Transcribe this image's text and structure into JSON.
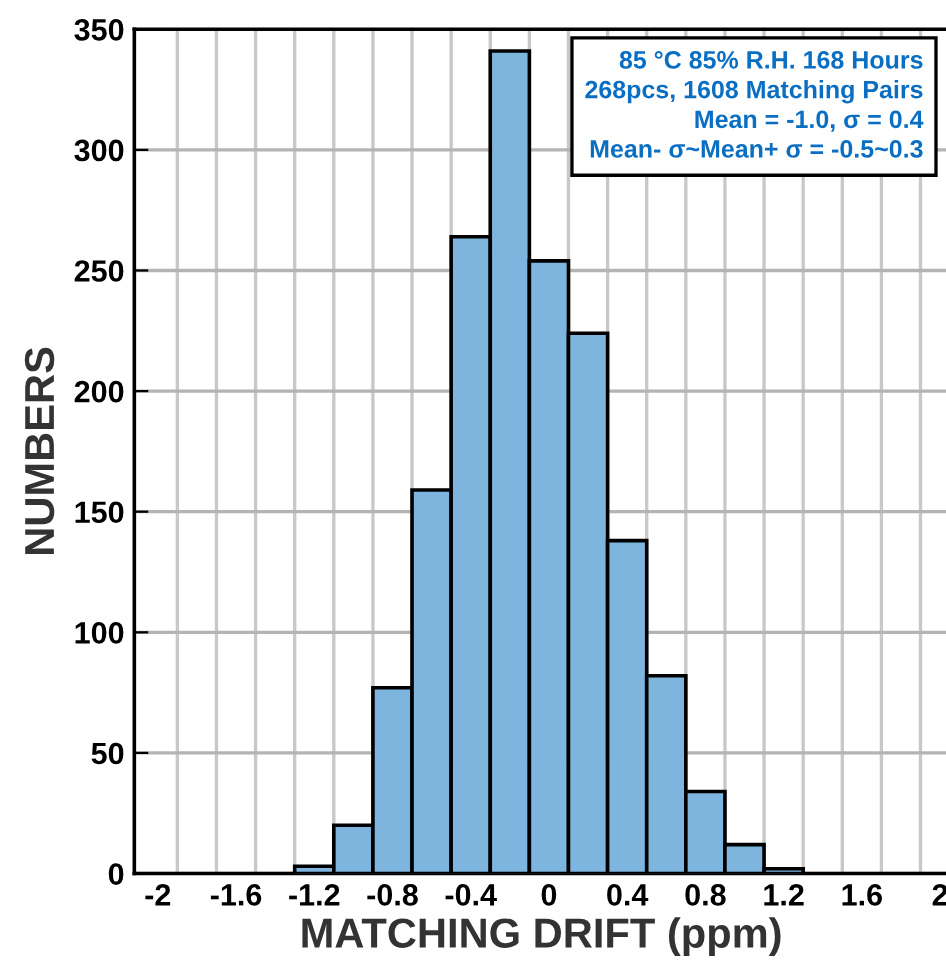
{
  "chart_data": {
    "type": "histogram",
    "xlabel": "MATCHING DRIFT (ppm)",
    "ylabel": "NUMBERS",
    "bins": [
      -1.3,
      -1.1,
      -0.9,
      -0.7,
      -0.5,
      -0.3,
      -0.1,
      0.1,
      0.3,
      0.5,
      0.7,
      0.9,
      1.1,
      1.3
    ],
    "values": [
      3,
      20,
      77,
      159,
      264,
      341,
      254,
      224,
      138,
      82,
      34,
      12,
      2
    ],
    "color": "#7db5de",
    "xlim": [
      -2.12,
      2.04
    ],
    "xticks": [
      -2,
      -1.6,
      -1.2,
      -0.8,
      -0.4,
      0,
      0.4,
      0.8,
      1.2,
      1.6,
      2,
      {
        "value": -1.9,
        "label": null
      },
      {
        "value": -1.7,
        "label": null
      },
      {
        "value": -1.5,
        "label": null
      },
      {
        "value": -1.3,
        "label": null
      },
      {
        "value": -1.1,
        "label": null
      },
      {
        "value": -0.9,
        "label": null
      },
      {
        "value": -0.7,
        "label": null
      },
      {
        "value": -0.5,
        "label": null
      },
      {
        "value": -0.3,
        "label": null
      },
      {
        "value": -0.1,
        "label": null
      },
      {
        "value": 0.1,
        "label": null
      },
      {
        "value": 0.3,
        "label": null
      },
      {
        "value": 0.5,
        "label": null
      },
      {
        "value": 0.7,
        "label": null
      },
      {
        "value": 0.9,
        "label": null
      },
      {
        "value": 1.1,
        "label": null
      },
      {
        "value": 1.3,
        "label": null
      },
      {
        "value": 1.5,
        "label": null
      },
      {
        "value": 1.7,
        "label": null
      },
      {
        "value": 1.9,
        "label": null
      }
    ],
    "ylim": [
      0,
      350
    ],
    "yticks": [
      0,
      50,
      100,
      150,
      200,
      250,
      300,
      350
    ],
    "grid": true,
    "annotations": [
      "85 °C 85% R.H. 168 Hours\n268pcs, 1608 Matching Pairs\nMean = -1.0, σ = 0.4\nMean- σ~Mean+ σ = -0.5~0.3"
    ]
  }
}
